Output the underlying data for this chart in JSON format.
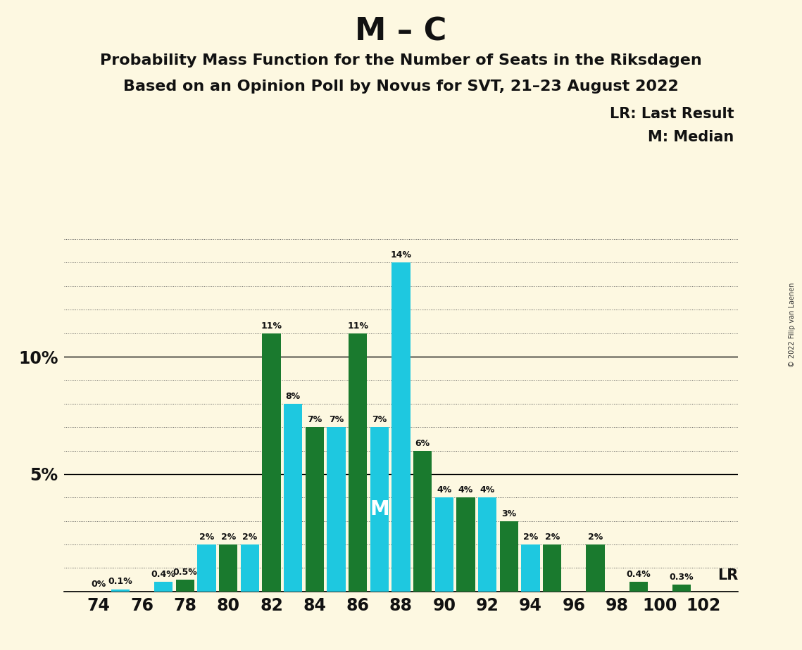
{
  "title": "M – C",
  "subtitle1": "Probability Mass Function for the Number of Seats in the Riksdagen",
  "subtitle2": "Based on an Opinion Poll by Novus for SVT, 21–23 August 2022",
  "copyright": "© 2022 Filip van Laenen",
  "legend_lr": "LR: Last Result",
  "legend_m": "M: Median",
  "lr_label": "LR",
  "median_label": "M",
  "background_color": "#fdf8e1",
  "bar_color_cyan": "#1ec8e0",
  "bar_color_green": "#1a7a2e",
  "seats": [
    74,
    75,
    76,
    77,
    78,
    79,
    80,
    81,
    82,
    83,
    84,
    85,
    86,
    87,
    88,
    89,
    90,
    91,
    92,
    93,
    94,
    95,
    96,
    97,
    98,
    99,
    100,
    101,
    102
  ],
  "colors": [
    "c",
    "c",
    "c",
    "c",
    "g",
    "c",
    "g",
    "c",
    "g",
    "c",
    "g",
    "c",
    "g",
    "c",
    "c",
    "g",
    "c",
    "g",
    "c",
    "g",
    "c",
    "g",
    "c",
    "g",
    "c",
    "g",
    "c",
    "g",
    "c"
  ],
  "values": [
    0.0,
    0.1,
    0.0,
    0.4,
    0.5,
    2.0,
    2.0,
    2.0,
    11.0,
    8.0,
    7.0,
    7.0,
    11.0,
    7.0,
    14.0,
    6.0,
    4.0,
    4.0,
    4.0,
    3.0,
    2.0,
    2.0,
    0.0,
    2.0,
    0.0,
    0.4,
    0.0,
    0.3,
    0.0
  ],
  "labels": [
    "0%",
    "0.1%",
    "",
    "0.4%",
    "0.5%",
    "2%",
    "2%",
    "2%",
    "11%",
    "8%",
    "7%",
    "7%",
    "11%",
    "7%",
    "14%",
    "6%",
    "4%",
    "4%",
    "4%",
    "3%",
    "2%",
    "2%",
    "",
    "2%",
    "",
    "0.4%",
    "",
    "0.3%",
    ""
  ],
  "show_zero_label": [
    true,
    false,
    false,
    false,
    false,
    false,
    false,
    false,
    false,
    false,
    false,
    false,
    false,
    false,
    false,
    false,
    false,
    false,
    false,
    false,
    false,
    false,
    false,
    false,
    false,
    false,
    true,
    false,
    true
  ],
  "xtick_seats": [
    74,
    76,
    78,
    80,
    82,
    84,
    86,
    88,
    90,
    92,
    94,
    96,
    98,
    100,
    102
  ],
  "ylim": [
    0,
    15.5
  ],
  "ytick_positions": [
    0,
    5,
    10
  ],
  "ytick_labels": [
    "",
    "5%",
    "10%"
  ],
  "lr_seat": 96,
  "median_seat": 87,
  "title_fontsize": 32,
  "subtitle_fontsize": 16,
  "label_fontsize": 9,
  "bar_width": 0.85,
  "solid_gridlines": [
    0,
    5,
    10
  ],
  "dotted_gridlines": [
    1,
    2,
    3,
    4,
    6,
    7,
    8,
    9,
    11,
    12,
    13,
    14,
    15
  ]
}
